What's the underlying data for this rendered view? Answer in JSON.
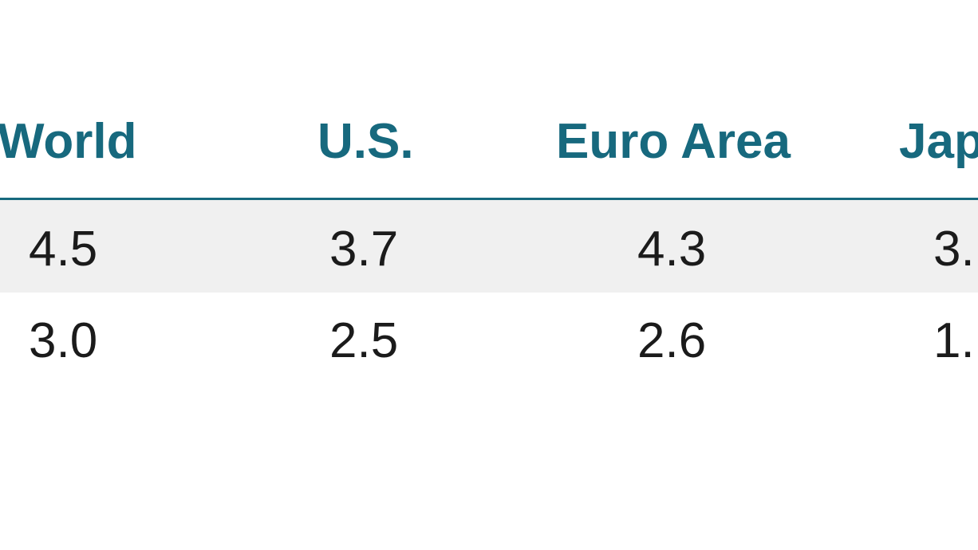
{
  "table": {
    "header": [
      "World",
      "U.S.",
      "Euro Area",
      "Jap"
    ],
    "rows": [
      [
        "4.5",
        "3.7",
        "4.3",
        "3."
      ],
      [
        "3.0",
        "2.5",
        "2.6",
        "1."
      ]
    ]
  }
}
